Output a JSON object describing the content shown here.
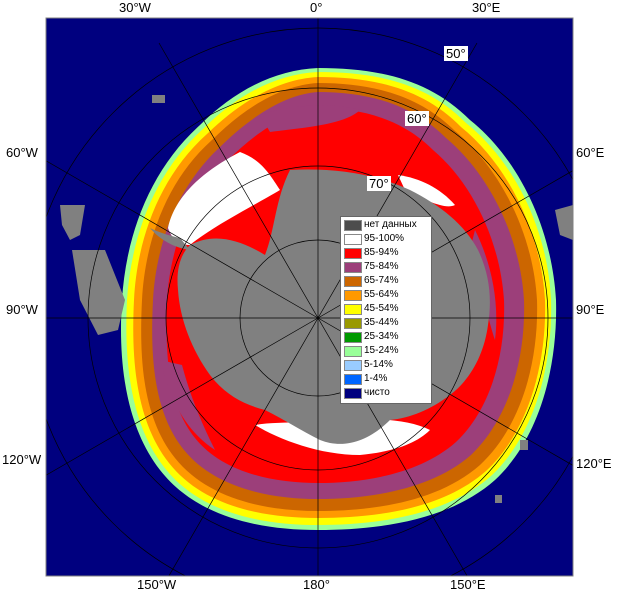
{
  "colors": {
    "ocean": "#00007f",
    "land": "#808080",
    "grid": "#000000",
    "frame": "#808080"
  },
  "edge_labels": {
    "top": [
      "30°W",
      "0°",
      "30°E"
    ],
    "left": [
      "60°W",
      "90°W",
      "120°W"
    ],
    "right": [
      "60°E",
      "90°E",
      "120°E"
    ],
    "bottom": [
      "150°W",
      "180°",
      "150°E"
    ]
  },
  "lat_labels": [
    "50°",
    "60°",
    "70°"
  ],
  "legend": {
    "items": [
      {
        "label": "нет данных",
        "color": "#4d4d4d"
      },
      {
        "label": "95-100%",
        "color": "#ffffff"
      },
      {
        "label": "85-94%",
        "color": "#ff0000"
      },
      {
        "label": "75-84%",
        "color": "#9c3f7a"
      },
      {
        "label": "65-74%",
        "color": "#cc6600"
      },
      {
        "label": "55-64%",
        "color": "#ff9900"
      },
      {
        "label": "45-54%",
        "color": "#ffff00"
      },
      {
        "label": "35-44%",
        "color": "#999900"
      },
      {
        "label": "25-34%",
        "color": "#009900"
      },
      {
        "label": "15-24%",
        "color": "#99ff99"
      },
      {
        "label": "5-14%",
        "color": "#99ccff"
      },
      {
        "label": "1-4%",
        "color": "#0066ff"
      },
      {
        "label": "чисто",
        "color": "#00007f"
      }
    ]
  }
}
